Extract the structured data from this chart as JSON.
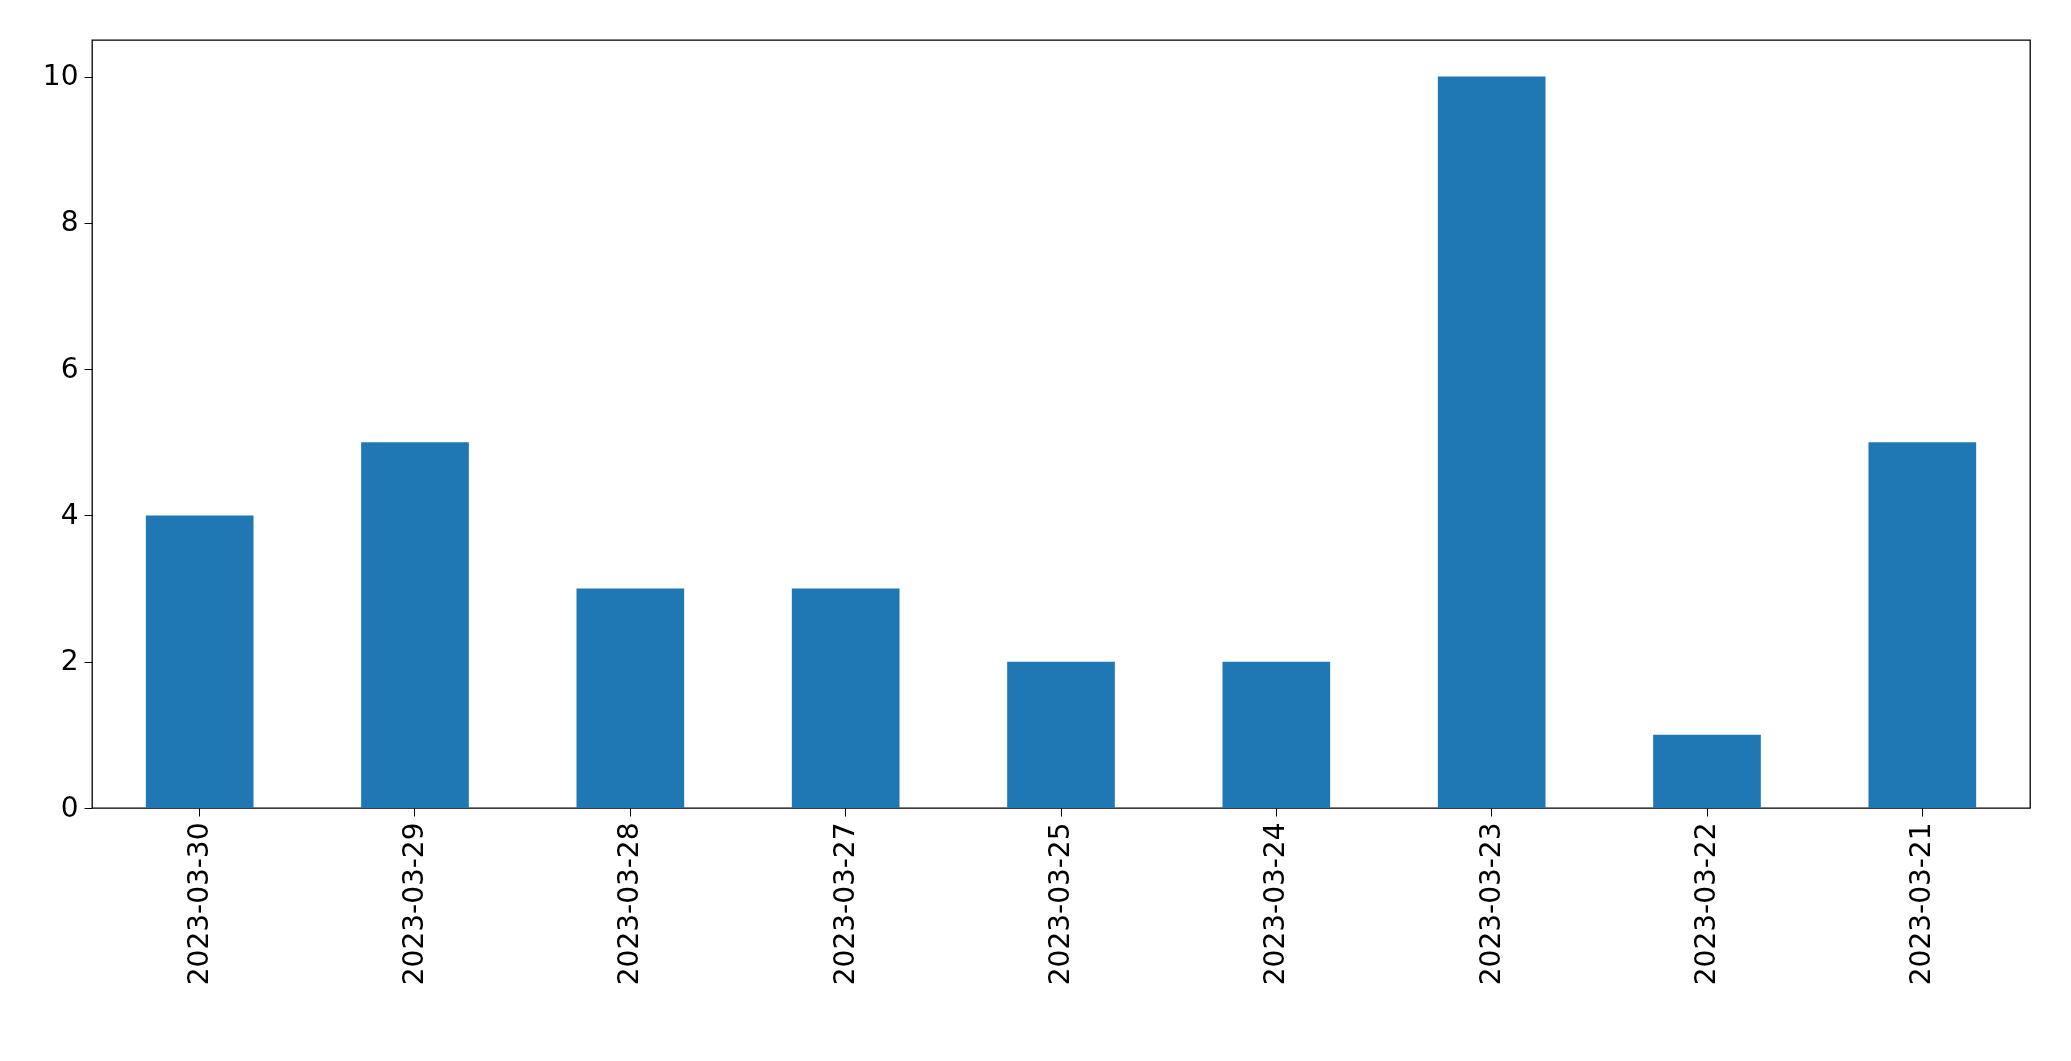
{
  "chart_data": {
    "type": "bar",
    "categories": [
      "2023-03-30",
      "2023-03-29",
      "2023-03-28",
      "2023-03-27",
      "2023-03-25",
      "2023-03-24",
      "2023-03-23",
      "2023-03-22",
      "2023-03-21"
    ],
    "values": [
      4,
      5,
      3,
      3,
      2,
      2,
      10,
      1,
      5
    ],
    "color": "#1f77b4",
    "ylim": [
      0,
      10.5
    ],
    "yticks": [
      0,
      2,
      4,
      6,
      8,
      10
    ],
    "grid": false
  }
}
